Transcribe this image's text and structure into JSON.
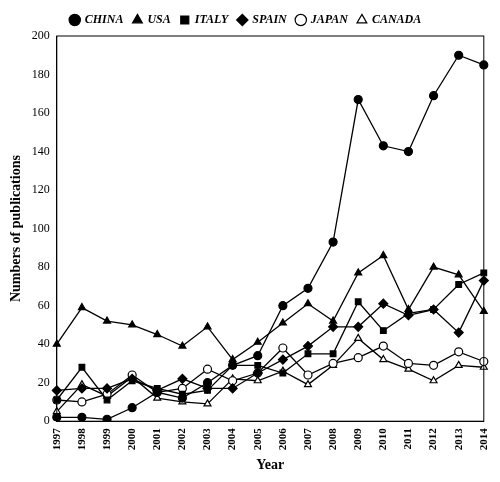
{
  "chart_data": {
    "type": "line",
    "x_label": "Year",
    "y_label": "Numbers of publications",
    "categories": [
      "1997",
      "1998",
      "1999",
      "2000",
      "2001",
      "2002",
      "2003",
      "2004",
      "2005",
      "2006",
      "2007",
      "2008",
      "2009",
      "2010",
      "2011",
      "2012",
      "2013",
      "2014"
    ],
    "series": [
      {
        "name": "CHINA",
        "color": "#000000",
        "marker": "circle",
        "values": [
          2,
          2,
          1,
          7,
          15,
          12,
          20,
          29,
          34,
          60,
          69,
          93,
          167,
          143,
          140,
          169,
          190,
          185
        ]
      },
      {
        "name": "USA",
        "color": "#000000",
        "marker": "triangle",
        "values": [
          40,
          59,
          52,
          50,
          45,
          39,
          49,
          32,
          41,
          51,
          61,
          52,
          77,
          86,
          58,
          80,
          76,
          57
        ]
      },
      {
        "name": "ITALY",
        "color": "#000000",
        "marker": "square",
        "values": [
          11,
          28,
          11,
          21,
          17,
          14,
          16,
          29,
          29,
          25,
          35,
          35,
          62,
          47,
          56,
          58,
          71,
          77
        ]
      },
      {
        "name": "SPAIN",
        "color": "#000000",
        "marker": "diamond",
        "values": [
          16,
          17,
          17,
          22,
          16,
          22,
          17,
          17,
          25,
          32,
          39,
          49,
          49,
          61,
          55,
          58,
          46,
          73
        ]
      },
      {
        "name": "JAPAN",
        "color": "#000000",
        "marker": "open_circle",
        "values": [
          11,
          10,
          14,
          24,
          15,
          17,
          27,
          21,
          25,
          38,
          24,
          30,
          33,
          39,
          30,
          29,
          36,
          31
        ]
      },
      {
        "name": "CANADA",
        "color": "#000000",
        "marker": "open_triangle",
        "values": [
          5,
          19,
          13,
          23,
          12,
          10,
          9,
          22,
          21,
          26,
          19,
          29,
          43,
          32,
          27,
          21,
          29,
          28
        ]
      }
    ],
    "ylim": [
      0,
      200
    ],
    "yticks": [
      0,
      20,
      40,
      60,
      80,
      100,
      120,
      140,
      160,
      180,
      200
    ],
    "grid": false,
    "legend": "top"
  }
}
